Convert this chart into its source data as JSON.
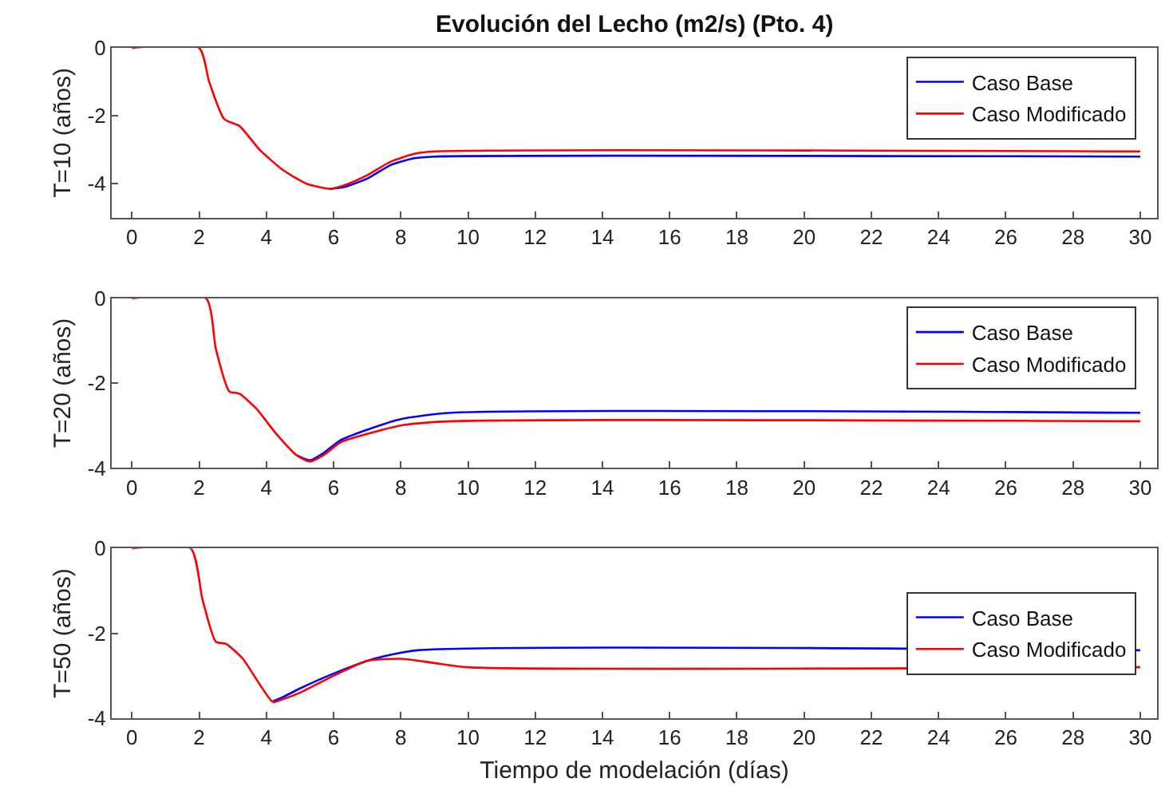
{
  "chart_data": [
    {
      "type": "line",
      "title": "Evolución del Lecho (m2/s) (Pto. 4)",
      "ylabel": "T=10 (años)",
      "xlim": [
        -0.6,
        30.5
      ],
      "xticks": [
        0,
        2,
        4,
        6,
        8,
        10,
        12,
        14,
        16,
        18,
        20,
        22,
        24,
        26,
        28,
        30
      ],
      "ylim": [
        -5,
        0
      ],
      "yticks": [
        -4,
        -2,
        0
      ],
      "legend": "top right",
      "marker": "none",
      "line_style": "solid",
      "series": [
        {
          "name": "Caso Base",
          "color": "#0000ff",
          "x": [
            5.9,
            6.3,
            7.0,
            7.7,
            8.4,
            9.0,
            30
          ],
          "values": [
            -4.15,
            -4.1,
            -3.85,
            -3.45,
            -3.25,
            -3.2,
            -3.2
          ]
        },
        {
          "name": "Caso Modificado",
          "color": "#ff0000",
          "x": [
            0,
            2.0,
            2.3,
            2.75,
            3.2,
            3.8,
            4.5,
            5.2,
            5.9,
            6.3,
            7.0,
            7.7,
            8.4,
            9.0,
            30
          ],
          "values": [
            0,
            0,
            -1.0,
            -2.1,
            -2.3,
            -3.0,
            -3.6,
            -4.0,
            -4.15,
            -4.05,
            -3.75,
            -3.35,
            -3.12,
            -3.05,
            -3.05
          ]
        }
      ]
    },
    {
      "type": "line",
      "ylabel": "T=20 (años)",
      "xlim": [
        -0.6,
        30.5
      ],
      "xticks": [
        0,
        2,
        4,
        6,
        8,
        10,
        12,
        14,
        16,
        18,
        20,
        22,
        24,
        26,
        28,
        30
      ],
      "ylim": [
        -4,
        0
      ],
      "yticks": [
        -4,
        -2,
        0
      ],
      "legend": "top right",
      "marker": "none",
      "line_style": "solid",
      "series": [
        {
          "name": "Caso Base",
          "color": "#0000ff",
          "x": [
            4.9,
            5.3,
            5.7,
            6.2,
            7.0,
            8.0,
            9.5,
            30
          ],
          "values": [
            -3.7,
            -3.82,
            -3.65,
            -3.35,
            -3.1,
            -2.85,
            -2.7,
            -2.7
          ]
        },
        {
          "name": "Caso Modificado",
          "color": "#ff0000",
          "x": [
            0,
            2.2,
            2.5,
            2.9,
            3.2,
            3.7,
            4.3,
            4.9,
            5.3,
            5.7,
            6.2,
            7.0,
            8.0,
            9.5,
            30
          ],
          "values": [
            0,
            0,
            -1.2,
            -2.2,
            -2.25,
            -2.6,
            -3.2,
            -3.7,
            -3.85,
            -3.7,
            -3.4,
            -3.2,
            -3.0,
            -2.9,
            -2.9
          ]
        }
      ]
    },
    {
      "type": "line",
      "ylabel": "T=50 (años)",
      "xlabel": "Tiempo de modelación (días)",
      "xlim": [
        -0.6,
        30.5
      ],
      "xticks": [
        0,
        2,
        4,
        6,
        8,
        10,
        12,
        14,
        16,
        18,
        20,
        22,
        24,
        26,
        28,
        30
      ],
      "ylim": [
        -4,
        0
      ],
      "yticks": [
        -4,
        -2,
        0
      ],
      "legend": "right",
      "marker": "none",
      "line_style": "solid",
      "series": [
        {
          "name": "Caso Base",
          "color": "#0000ff",
          "x": [
            4.2,
            4.5,
            5.0,
            6.0,
            7.2,
            8.5,
            30
          ],
          "values": [
            -3.6,
            -3.5,
            -3.3,
            -2.95,
            -2.6,
            -2.4,
            -2.4
          ]
        },
        {
          "name": "Caso Modificado",
          "color": "#ff0000",
          "x": [
            0,
            1.75,
            2.1,
            2.5,
            2.8,
            3.3,
            3.8,
            4.2,
            4.5,
            5.0,
            6.0,
            7.0,
            8.0,
            9.0,
            10.0,
            30
          ],
          "values": [
            0,
            0,
            -1.2,
            -2.2,
            -2.25,
            -2.6,
            -3.2,
            -3.62,
            -3.55,
            -3.4,
            -3.0,
            -2.65,
            -2.6,
            -2.7,
            -2.8,
            -2.8
          ]
        }
      ]
    }
  ]
}
